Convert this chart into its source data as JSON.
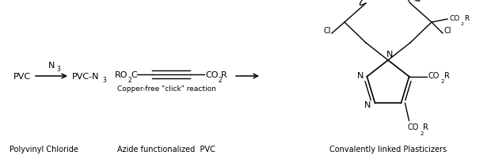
{
  "bg_color": "#ffffff",
  "text_color": "#000000",
  "fig_width": 6.2,
  "fig_height": 2.07,
  "dpi": 100,
  "label_pvc": "Polyvinyl Chloride",
  "label_azide": "Azide functionalized  PVC",
  "label_product": "Convalently linked Plasticizers",
  "click_label": "Copper-free \"click\" reaction"
}
